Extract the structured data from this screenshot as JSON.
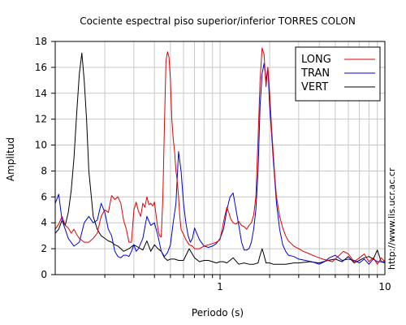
{
  "chart_data": {
    "type": "line",
    "title": "Cociente espectral piso superior/inferior  TORRES COLON",
    "xlabel": "Periodo (s)",
    "ylabel": "Amplitud",
    "xscale": "log",
    "xlim": [
      0.1,
      10
    ],
    "ylim": [
      0,
      18
    ],
    "grid": true,
    "legend_position": "top-right",
    "y_ticks": [
      0,
      2,
      4,
      6,
      8,
      10,
      12,
      14,
      16,
      18
    ],
    "x_tick_labels": [
      {
        "value": 1,
        "label": "1"
      },
      {
        "value": 10,
        "label": "10"
      }
    ],
    "watermark": "http://www.lis.ucr.ac.cr",
    "series": [
      {
        "name": "LONG",
        "color": "#e00000",
        "x": [
          0.1,
          0.105,
          0.11,
          0.115,
          0.12,
          0.125,
          0.13,
          0.135,
          0.14,
          0.15,
          0.16,
          0.17,
          0.18,
          0.19,
          0.2,
          0.21,
          0.22,
          0.23,
          0.24,
          0.25,
          0.26,
          0.27,
          0.28,
          0.29,
          0.3,
          0.31,
          0.32,
          0.33,
          0.34,
          0.35,
          0.36,
          0.37,
          0.38,
          0.39,
          0.4,
          0.41,
          0.42,
          0.43,
          0.44,
          0.45,
          0.46,
          0.47,
          0.48,
          0.49,
          0.5,
          0.51,
          0.52,
          0.53,
          0.54,
          0.55,
          0.56,
          0.57,
          0.58,
          0.6,
          0.62,
          0.65,
          0.68,
          0.7,
          0.75,
          0.8,
          0.85,
          0.9,
          0.95,
          1.0,
          1.03,
          1.06,
          1.1,
          1.13,
          1.16,
          1.2,
          1.25,
          1.3,
          1.35,
          1.4,
          1.45,
          1.5,
          1.55,
          1.6,
          1.65,
          1.7,
          1.75,
          1.8,
          1.85,
          1.9,
          1.95,
          2.0,
          2.05,
          2.1,
          2.15,
          2.2,
          2.3,
          2.4,
          2.5,
          2.6,
          2.7,
          2.8,
          3.0,
          3.2,
          3.5,
          3.8,
          4.0,
          4.2,
          4.5,
          4.8,
          5.0,
          5.3,
          5.6,
          6.0,
          6.5,
          7.0,
          7.5,
          8.0,
          8.5,
          9.0,
          9.5,
          10.0
        ],
        "y": [
          3.5,
          3.9,
          4.5,
          3.8,
          3.6,
          3.2,
          3.5,
          3.1,
          2.8,
          2.5,
          2.5,
          2.8,
          3.2,
          4.5,
          5.0,
          4.8,
          6.1,
          5.8,
          6.0,
          5.5,
          4.2,
          3.5,
          2.5,
          2.5,
          5.0,
          5.6,
          4.9,
          4.5,
          5.5,
          5.2,
          6.0,
          5.4,
          5.5,
          5.3,
          5.6,
          4.5,
          3.5,
          3.0,
          2.9,
          6.0,
          11.5,
          16.5,
          17.2,
          16.8,
          15.0,
          12.0,
          10.5,
          9.5,
          8.0,
          7.2,
          6.0,
          4.5,
          3.5,
          3.1,
          2.7,
          2.3,
          2.2,
          2.0,
          2.0,
          2.2,
          2.3,
          2.4,
          2.5,
          2.7,
          3.5,
          4.3,
          5.2,
          4.8,
          4.3,
          4.0,
          3.9,
          4.1,
          3.8,
          3.7,
          3.5,
          3.8,
          4.0,
          4.6,
          6.0,
          10.5,
          15.0,
          17.5,
          17.0,
          14.5,
          16.0,
          14.0,
          11.5,
          9.5,
          7.5,
          6.0,
          4.5,
          3.6,
          3.0,
          2.6,
          2.4,
          2.2,
          2.0,
          1.8,
          1.6,
          1.4,
          1.3,
          1.2,
          1.1,
          1.0,
          1.2,
          1.5,
          1.8,
          1.6,
          1.0,
          1.3,
          1.6,
          1.0,
          1.3,
          0.8,
          1.3,
          1.0
        ]
      },
      {
        "name": "TRAN",
        "color": "#0000e0",
        "x": [
          0.1,
          0.105,
          0.11,
          0.115,
          0.12,
          0.13,
          0.14,
          0.15,
          0.16,
          0.17,
          0.18,
          0.19,
          0.2,
          0.21,
          0.22,
          0.23,
          0.24,
          0.25,
          0.26,
          0.27,
          0.28,
          0.29,
          0.3,
          0.31,
          0.32,
          0.34,
          0.36,
          0.38,
          0.4,
          0.42,
          0.44,
          0.46,
          0.48,
          0.5,
          0.52,
          0.54,
          0.56,
          0.58,
          0.6,
          0.62,
          0.64,
          0.66,
          0.68,
          0.7,
          0.75,
          0.8,
          0.85,
          0.9,
          0.95,
          1.0,
          1.05,
          1.1,
          1.15,
          1.2,
          1.25,
          1.3,
          1.35,
          1.4,
          1.45,
          1.5,
          1.55,
          1.6,
          1.65,
          1.7,
          1.75,
          1.8,
          1.85,
          1.9,
          1.95,
          2.0,
          2.05,
          2.1,
          2.2,
          2.3,
          2.4,
          2.5,
          2.6,
          2.8,
          3.0,
          3.3,
          3.6,
          4.0,
          4.3,
          4.6,
          5.0,
          5.5,
          6.0,
          6.5,
          7.0,
          7.5,
          8.0,
          8.5,
          9.0,
          9.5,
          10.0
        ],
        "y": [
          5.5,
          6.2,
          4.2,
          3.5,
          2.8,
          2.2,
          2.5,
          4.0,
          4.5,
          4.0,
          4.2,
          5.5,
          4.8,
          3.5,
          3.0,
          1.8,
          1.4,
          1.3,
          1.5,
          1.5,
          1.4,
          1.8,
          2.3,
          1.8,
          2.0,
          2.8,
          4.5,
          3.8,
          4.0,
          3.0,
          1.8,
          1.4,
          1.7,
          2.3,
          4.0,
          5.5,
          9.5,
          8.0,
          5.5,
          4.0,
          3.0,
          2.5,
          2.8,
          3.6,
          2.7,
          2.2,
          2.1,
          2.2,
          2.4,
          2.8,
          3.5,
          5.0,
          6.0,
          6.3,
          5.0,
          3.8,
          2.5,
          1.9,
          1.9,
          2.0,
          2.5,
          3.5,
          5.0,
          8.0,
          13.0,
          15.5,
          16.3,
          15.0,
          16.0,
          13.0,
          11.0,
          9.0,
          5.5,
          3.5,
          2.3,
          1.8,
          1.5,
          1.4,
          1.2,
          1.1,
          1.0,
          0.8,
          1.0,
          1.3,
          1.5,
          1.1,
          1.2,
          1.1,
          0.9,
          1.2,
          0.8,
          1.2,
          1.0,
          1.0,
          0.9
        ]
      },
      {
        "name": "VERT",
        "color": "#000000",
        "x": [
          0.1,
          0.105,
          0.11,
          0.115,
          0.12,
          0.125,
          0.13,
          0.135,
          0.14,
          0.145,
          0.15,
          0.155,
          0.16,
          0.17,
          0.18,
          0.19,
          0.2,
          0.21,
          0.22,
          0.23,
          0.24,
          0.25,
          0.26,
          0.27,
          0.28,
          0.3,
          0.32,
          0.34,
          0.36,
          0.38,
          0.4,
          0.42,
          0.44,
          0.46,
          0.48,
          0.5,
          0.53,
          0.56,
          0.6,
          0.65,
          0.7,
          0.75,
          0.8,
          0.85,
          0.9,
          0.95,
          1.0,
          1.05,
          1.1,
          1.2,
          1.3,
          1.4,
          1.5,
          1.6,
          1.7,
          1.75,
          1.8,
          1.85,
          1.9,
          2.0,
          2.1,
          2.2,
          2.5,
          2.8,
          3.0,
          3.5,
          4.0,
          4.5,
          5.0,
          5.5,
          6.0,
          6.5,
          7.0,
          7.5,
          8.0,
          8.5,
          9.0,
          9.5,
          10.0
        ],
        "y": [
          3.2,
          3.5,
          4.2,
          3.8,
          4.8,
          6.5,
          9.0,
          12.5,
          15.5,
          17.1,
          15.0,
          12.0,
          8.0,
          4.5,
          3.5,
          3.0,
          2.8,
          2.6,
          2.5,
          2.3,
          2.2,
          2.0,
          1.8,
          1.9,
          2.0,
          2.3,
          2.1,
          1.9,
          2.6,
          1.8,
          2.3,
          2.0,
          1.8,
          1.3,
          1.1,
          1.2,
          1.2,
          1.1,
          1.1,
          2.0,
          1.3,
          1.0,
          1.1,
          1.1,
          1.0,
          0.9,
          1.0,
          1.0,
          0.9,
          1.3,
          0.8,
          0.9,
          0.8,
          0.8,
          0.9,
          1.5,
          2.0,
          1.5,
          0.9,
          0.9,
          0.8,
          0.8,
          0.8,
          0.9,
          0.9,
          1.0,
          0.9,
          1.1,
          1.2,
          1.0,
          1.4,
          0.9,
          1.1,
          1.3,
          1.4,
          1.2,
          1.9,
          1.0,
          1.0
        ]
      }
    ]
  }
}
